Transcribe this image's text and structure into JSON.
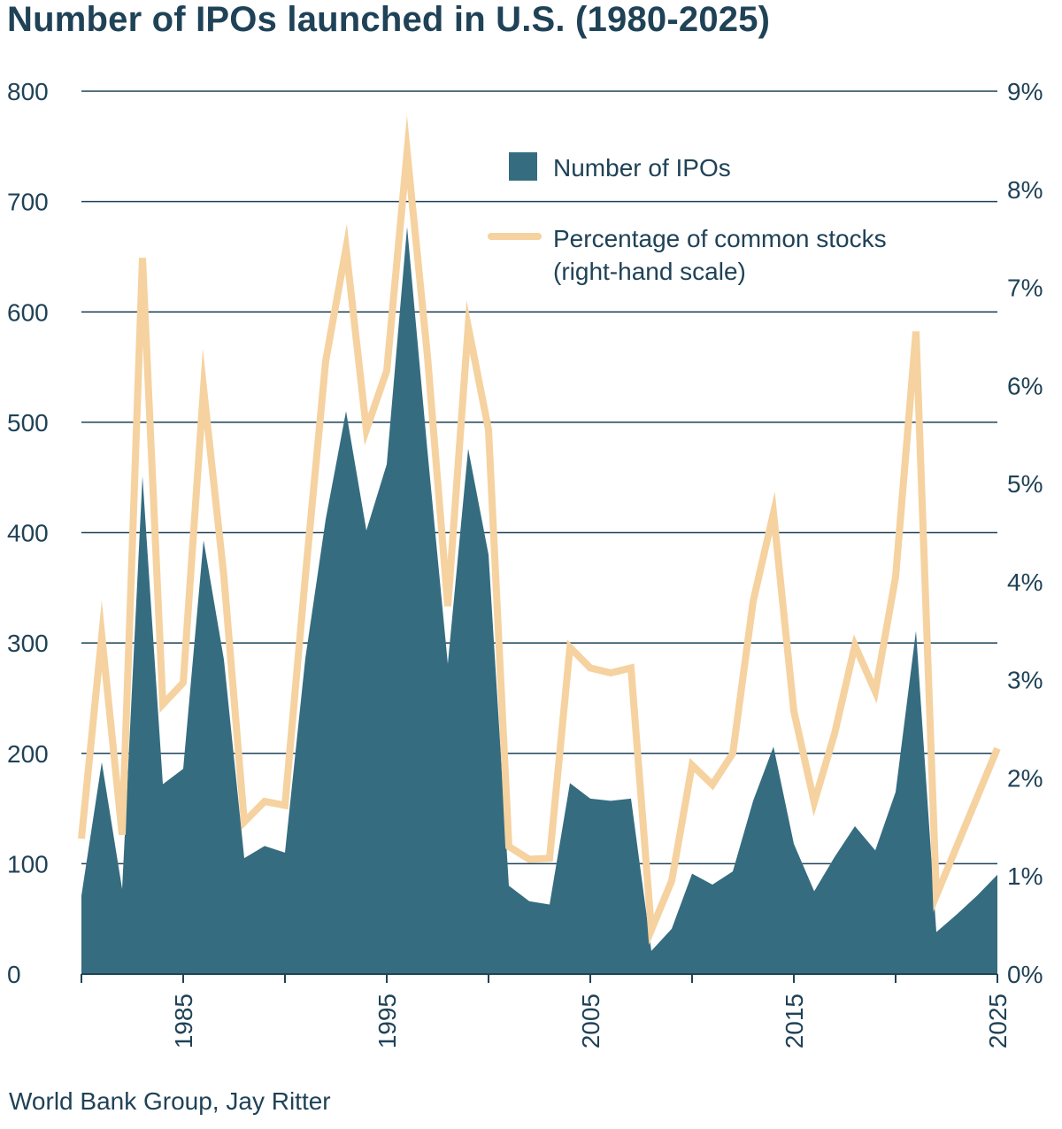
{
  "chart_data": {
    "type": "area",
    "title": "Number of IPOs launched in U.S. (1980-2025)",
    "source": "World Bank Group, Jay Ritter",
    "x": [
      1980,
      1981,
      1982,
      1983,
      1984,
      1985,
      1986,
      1987,
      1988,
      1989,
      1990,
      1991,
      1992,
      1993,
      1994,
      1995,
      1996,
      1997,
      1998,
      1999,
      2000,
      2001,
      2002,
      2003,
      2004,
      2005,
      2006,
      2007,
      2008,
      2009,
      2010,
      2011,
      2012,
      2013,
      2014,
      2015,
      2016,
      2017,
      2018,
      2019,
      2020,
      2021,
      2022,
      2023,
      2024,
      2025
    ],
    "xlim": [
      1980,
      2025
    ],
    "x_ticks": [
      1985,
      1995,
      2005,
      2015,
      2025
    ],
    "ylim_left": [
      0,
      800
    ],
    "y_ticks_left": [
      0,
      100,
      200,
      300,
      400,
      500,
      600,
      700,
      800
    ],
    "ylim_right": [
      0,
      9
    ],
    "y_ticks_right": [
      "0%",
      "1%",
      "2%",
      "3%",
      "4%",
      "5%",
      "6%",
      "7%",
      "8%",
      "9%"
    ],
    "grid": true,
    "legend_position": "top-right",
    "series": [
      {
        "name": "Number of IPOs",
        "type": "area",
        "axis": "left",
        "color": "#356c80",
        "values": [
          71,
          192,
          77,
          451,
          172,
          186,
          393,
          285,
          105,
          116,
          110,
          286,
          412,
          510,
          402,
          462,
          677,
          474,
          281,
          476,
          380,
          80,
          66,
          63,
          173,
          159,
          157,
          159,
          21,
          41,
          91,
          81,
          93,
          157,
          206,
          118,
          75,
          106,
          134,
          112,
          165,
          311,
          38,
          54,
          71,
          90
        ]
      },
      {
        "name": "Percentage of common stocks",
        "axis_note": "(right-hand scale)",
        "type": "line",
        "axis": "right",
        "color": "#f5d29f",
        "values": [
          1.38,
          3.45,
          1.42,
          7.3,
          2.75,
          2.97,
          5.97,
          4.05,
          1.55,
          1.76,
          1.72,
          4.05,
          6.25,
          7.4,
          5.55,
          6.15,
          8.38,
          6.3,
          3.75,
          6.6,
          5.55,
          1.3,
          1.17,
          1.18,
          3.33,
          3.12,
          3.07,
          3.12,
          0.45,
          0.95,
          2.13,
          1.93,
          2.25,
          3.8,
          4.7,
          2.68,
          1.75,
          2.45,
          3.35,
          2.88,
          4.05,
          6.55,
          0.8,
          1.3,
          1.8,
          2.3
        ]
      }
    ]
  }
}
